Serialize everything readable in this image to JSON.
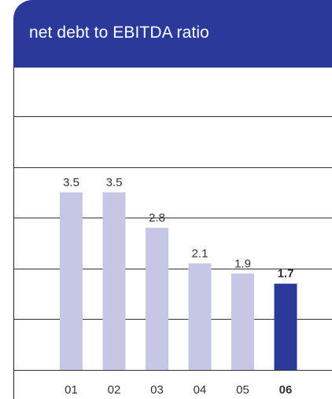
{
  "header": {
    "title": "net debt to EBITDA ratio"
  },
  "colors": {
    "header_bg": "#2b3a9a",
    "bar_past": "#c6c7e4",
    "bar_current": "#2b3a9a",
    "gridline": "#333333"
  },
  "chart_data": {
    "type": "bar",
    "title": "net debt to EBITDA ratio",
    "categories": [
      "01",
      "02",
      "03",
      "04",
      "05",
      "06"
    ],
    "values": [
      3.5,
      3.5,
      2.8,
      2.1,
      1.9,
      1.7
    ],
    "value_labels": [
      "3.5",
      "3.5",
      "2.8",
      "2.1",
      "1.9",
      "1.7"
    ],
    "highlight_index": 5,
    "xlabel": "",
    "ylabel": "",
    "ylim": [
      0,
      5
    ],
    "grid": true,
    "y_axis_labels_shown": false
  }
}
